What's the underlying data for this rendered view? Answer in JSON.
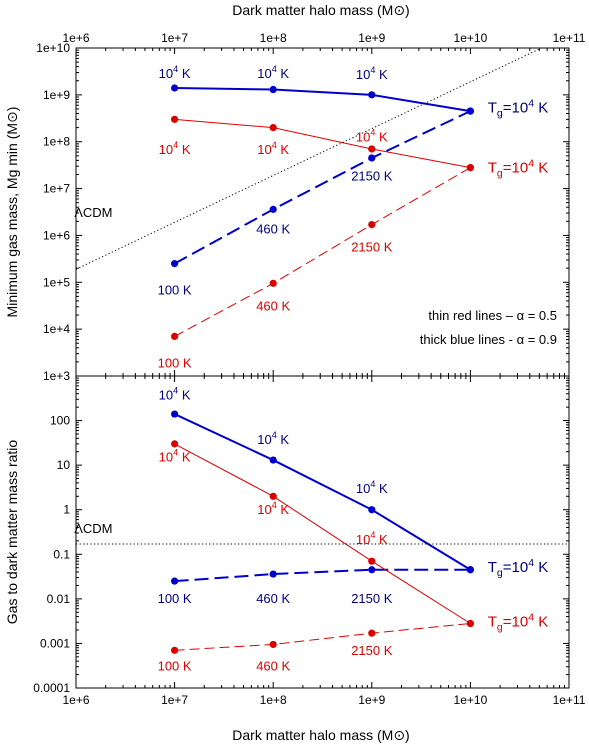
{
  "figure": {
    "top_xlabel": "Dark matter halo mass (M⊙)",
    "bottom_xlabel": "Dark matter halo mass (M⊙)"
  },
  "chart_data": [
    {
      "type": "line",
      "panel": "top",
      "xscale": "log",
      "yscale": "log",
      "xlim": [
        1000000.0,
        100000000000.0
      ],
      "ylim": [
        1000.0,
        10000000000.0
      ],
      "ylabel": "Minimum gas mass, Mg min (M⊙)",
      "x_tick_labels": [
        "1e+6",
        "1e+7",
        "1e+8",
        "1e+9",
        "1e+10",
        "1e+11"
      ],
      "y_tick_labels": [
        "1e+3",
        "1e+4",
        "1e+5",
        "1e+6",
        "1e+7",
        "1e+8",
        "1e+9",
        "1e+10"
      ],
      "legend_notes": [
        "thin red lines – α = 0.5",
        "thick blue lines - α = 0.9"
      ],
      "series": [
        {
          "color": "#0000cc",
          "style": "solid-thick",
          "x": [
            10000000.0,
            100000000.0,
            1000000000.0,
            10000000000.0
          ],
          "y": [
            1400000000.0,
            1300000000.0,
            1000000000.0,
            450000000.0
          ]
        },
        {
          "color": "#0000cc",
          "style": "dashed-thick",
          "x": [
            10000000.0,
            100000000.0,
            1000000000.0,
            10000000000.0
          ],
          "y": [
            250000.0,
            3600000.0,
            45000000.0,
            450000000.0
          ]
        },
        {
          "color": "#dd0000",
          "style": "solid-thin",
          "x": [
            10000000.0,
            100000000.0,
            1000000000.0,
            10000000000.0
          ],
          "y": [
            300000000.0,
            200000000.0,
            70000000.0,
            28000000.0
          ]
        },
        {
          "color": "#dd0000",
          "style": "dashed-thin",
          "x": [
            10000000.0,
            100000000.0,
            1000000000.0,
            10000000000.0
          ],
          "y": [
            7000.0,
            95000.0,
            1700000.0,
            28000000.0
          ]
        },
        {
          "color": "#000000",
          "style": "dotted",
          "x": [
            1000000.0,
            100000000000.0
          ],
          "y": [
            190000.0,
            19000000000.0
          ]
        }
      ],
      "annotations": [
        {
          "text": "ΛCDM",
          "x": 1500000.0,
          "y": 2500000.0,
          "color": "#000000"
        },
        {
          "text": "10",
          "sup": "4",
          "tail": " K",
          "x": 10000000.0,
          "y": 2300000000.0,
          "color": "#000080"
        },
        {
          "text": "10",
          "sup": "4",
          "tail": " K",
          "x": 100000000.0,
          "y": 2300000000.0,
          "color": "#000080"
        },
        {
          "text": "10",
          "sup": "4",
          "tail": " K",
          "x": 1000000000.0,
          "y": 2200000000.0,
          "color": "#000080"
        },
        {
          "text": "10",
          "sup": "4",
          "tail": " K",
          "x": 10000000.0,
          "y": 55000000.0,
          "color": "#dd0000"
        },
        {
          "text": "10",
          "sup": "4",
          "tail": " K",
          "x": 100000000.0,
          "y": 55000000.0,
          "color": "#dd0000"
        },
        {
          "text": "10",
          "sup": "4",
          "tail": " K",
          "x": 1000000000.0,
          "y": 100000000.0,
          "color": "#dd0000"
        },
        {
          "text": "100 K",
          "x": 10000000.0,
          "y": 55000.0,
          "color": "#000080"
        },
        {
          "text": "460 K",
          "x": 100000000.0,
          "y": 1100000.0,
          "color": "#000080"
        },
        {
          "text": "2150 K",
          "x": 1000000000.0,
          "y": 15000000.0,
          "color": "#000080"
        },
        {
          "text": "100 K",
          "x": 10000000.0,
          "y": 1500.0,
          "color": "#dd0000"
        },
        {
          "text": "460 K",
          "x": 100000000.0,
          "y": 25000.0,
          "color": "#dd0000"
        },
        {
          "text": "2150 K",
          "x": 1000000000.0,
          "y": 450000.0,
          "color": "#dd0000"
        },
        {
          "text": "T",
          "sub": "g",
          "tail": "=10",
          "sup": "4",
          "tail2": " K",
          "x": 15000000000.0,
          "y": 420000000.0,
          "color": "#000080"
        },
        {
          "text": "T",
          "sub": "g",
          "tail": "=10",
          "sup": "4",
          "tail2": " K",
          "x": 15000000000.0,
          "y": 22000000.0,
          "color": "#dd0000"
        }
      ]
    },
    {
      "type": "line",
      "panel": "bottom",
      "xscale": "log",
      "yscale": "log",
      "xlim": [
        1000000.0,
        100000000000.0
      ],
      "ylim": [
        0.0001,
        1000
      ],
      "ylabel": "Gas to dark matter mass ratio",
      "x_tick_labels": [
        "1e+6",
        "1e+7",
        "1e+8",
        "1e+9",
        "1e+10",
        "1e+11"
      ],
      "y_tick_labels": [
        "0.0001",
        "0.001",
        "0.01",
        "0.1",
        "1",
        "10",
        "100"
      ],
      "series": [
        {
          "color": "#0000cc",
          "style": "solid-thick",
          "x": [
            10000000.0,
            100000000.0,
            1000000000.0,
            10000000000.0
          ],
          "y": [
            140,
            13,
            1.0,
            0.045
          ]
        },
        {
          "color": "#0000cc",
          "style": "dashed-thick",
          "x": [
            10000000.0,
            100000000.0,
            1000000000.0,
            10000000000.0
          ],
          "y": [
            0.025,
            0.036,
            0.045,
            0.045
          ]
        },
        {
          "color": "#dd0000",
          "style": "solid-thin",
          "x": [
            10000000.0,
            100000000.0,
            1000000000.0,
            10000000000.0
          ],
          "y": [
            30,
            2.0,
            0.07,
            0.0028
          ]
        },
        {
          "color": "#dd0000",
          "style": "dashed-thin",
          "x": [
            10000000.0,
            100000000.0,
            1000000000.0,
            10000000000.0
          ],
          "y": [
            0.0007,
            0.00095,
            0.0017,
            0.0028
          ]
        },
        {
          "color": "#000000",
          "style": "dotted",
          "x": [
            1000000.0,
            100000000000.0
          ],
          "y": [
            0.17,
            0.17
          ]
        }
      ],
      "annotations": [
        {
          "text": "ΛCDM",
          "x": 1500000.0,
          "y": 0.3,
          "color": "#000000"
        },
        {
          "text": "10",
          "sup": "4",
          "tail": " K",
          "x": 10000000.0,
          "y": 300,
          "color": "#000080"
        },
        {
          "text": "10",
          "sup": "4",
          "tail": " K",
          "x": 100000000.0,
          "y": 30,
          "color": "#000080"
        },
        {
          "text": "10",
          "sup": "4",
          "tail": " K",
          "x": 1000000000.0,
          "y": 2.4,
          "color": "#000080"
        },
        {
          "text": "10",
          "sup": "4",
          "tail": " K",
          "x": 10000000.0,
          "y": 12,
          "color": "#dd0000"
        },
        {
          "text": "10",
          "sup": "4",
          "tail": " K",
          "x": 100000000.0,
          "y": 0.8,
          "color": "#dd0000"
        },
        {
          "text": "10",
          "sup": "4",
          "tail": " K",
          "x": 1000000000.0,
          "y": 0.17,
          "color": "#dd0000"
        },
        {
          "text": "100 K",
          "x": 10000000.0,
          "y": 0.008,
          "color": "#000080"
        },
        {
          "text": "460 K",
          "x": 100000000.0,
          "y": 0.008,
          "color": "#000080"
        },
        {
          "text": "2150 K",
          "x": 1000000000.0,
          "y": 0.008,
          "color": "#000080"
        },
        {
          "text": "100 K",
          "x": 10000000.0,
          "y": 0.00025,
          "color": "#dd0000"
        },
        {
          "text": "460 K",
          "x": 100000000.0,
          "y": 0.00025,
          "color": "#dd0000"
        },
        {
          "text": "2150 K",
          "x": 1000000000.0,
          "y": 0.00055,
          "color": "#dd0000"
        },
        {
          "text": "T",
          "sub": "g",
          "tail": "=10",
          "sup": "4",
          "tail2": " K",
          "x": 15000000000.0,
          "y": 0.04,
          "color": "#000080"
        },
        {
          "text": "T",
          "sub": "g",
          "tail": "=10",
          "sup": "4",
          "tail2": " K",
          "x": 15000000000.0,
          "y": 0.0024,
          "color": "#dd0000"
        }
      ]
    }
  ]
}
